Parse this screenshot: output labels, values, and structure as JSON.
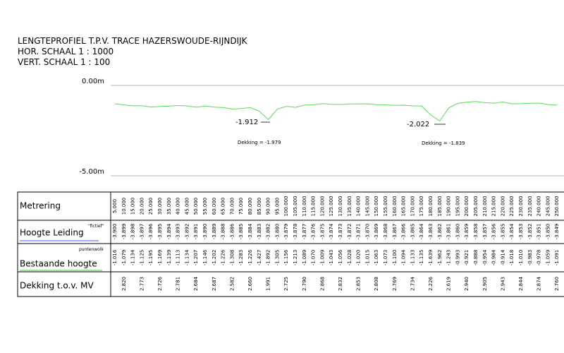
{
  "header": {
    "title": "LENGTEPROFIEL T.P.V. TRACE HAZERSWOUDE-RIJNDIJK",
    "lines": [
      "HOR. SCHAAL 1 : 1000",
      "VERT. SCHAAL 1 : 100"
    ]
  },
  "profile": {
    "yticks": [
      {
        "value": 0,
        "label": "0.00m"
      },
      {
        "value": -5,
        "label": "-5.00m"
      }
    ],
    "low_points": [
      "-1.912",
      "-2.022"
    ],
    "dekking_notes": [
      "Dekking = -1.979",
      "Dekking = -1.839"
    ]
  },
  "table": {
    "metrering": {
      "label": "Metrering",
      "values": [
        "5.000",
        "10.000",
        "15.000",
        "20.000",
        "25.000",
        "30.000",
        "35.000",
        "40.000",
        "45.000",
        "50.000",
        "55.000",
        "60.000",
        "65.000",
        "70.000",
        "75.000",
        "80.000",
        "85.000",
        "90.000",
        "95.000",
        "100.000",
        "105.000",
        "110.000",
        "115.000",
        "120.000",
        "125.000",
        "130.000",
        "135.000",
        "140.000",
        "145.000",
        "150.000",
        "155.000",
        "160.000",
        "165.000",
        "170.000",
        "175.000",
        "180.000",
        "185.000",
        "190.000",
        "195.000",
        "200.000",
        "205.000",
        "210.000",
        "215.000",
        "220.000",
        "225.000",
        "230.000",
        "235.000",
        "240.000",
        "245.000",
        "250.000"
      ]
    },
    "hoogte_leiding": {
      "label": "Hoogte Leiding",
      "note": "\"fictief\"",
      "values": [
        "-3.900",
        "-3.899",
        "-3.898",
        "-3.897",
        "-3.896",
        "-3.895",
        "-3.894",
        "-3.893",
        "-3.892",
        "-3.891",
        "-3.890",
        "-3.889",
        "-3.888",
        "-3.886",
        "-3.885",
        "-3.884",
        "-3.883",
        "-3.882",
        "-3.880",
        "-3.879",
        "-3.878",
        "-3.877",
        "-3.876",
        "-3.875",
        "-3.874",
        "-3.873",
        "-3.872",
        "-3.871",
        "-3.870",
        "-3.869",
        "-3.868",
        "-3.867",
        "-3.866",
        "-3.865",
        "-3.864",
        "-3.863",
        "-3.862",
        "-3.861",
        "-3.860",
        "-3.859",
        "-3.858",
        "-3.857",
        "-3.856",
        "-3.855",
        "-3.854",
        "-3.853",
        "-3.852",
        "-3.851",
        "-3.850",
        "-3.849"
      ]
    },
    "bestaande_hoogte": {
      "label": "Bestaande hoogte",
      "note": "puntenwolk",
      "values": [
        "-1.016",
        "-1.079",
        "-1.134",
        "-1.125",
        "-1.195",
        "-1.169",
        "-1.139",
        "-1.113",
        "-1.134",
        "-1.207",
        "-1.146",
        "-1.202",
        "-1.226",
        "-1.308",
        "-1.283",
        "-1.226",
        "-1.427",
        "-1.892",
        "-1.305",
        "-1.156",
        "-1.213",
        "-1.089",
        "-1.070",
        "-1.009",
        "-1.043",
        "-1.056",
        "-1.028",
        "-1.020",
        "-1.015",
        "-1.063",
        "-1.073",
        "-1.100",
        "-1.094",
        "-1.133",
        "-1.135",
        "-1.639",
        "-1.962",
        "-1.243",
        "-0.993",
        "-0.921",
        "-0.888",
        "-0.954",
        "-0.984",
        "-0.914",
        "-1.018",
        "-1.010",
        "-0.983",
        "-0.978",
        "-1.059",
        "-1.091"
      ]
    },
    "dekking": {
      "label": "Dekking t.o.v. MV",
      "values": [
        "2.820",
        "2.773",
        "2.726",
        "2.781",
        "2.684",
        "2.687",
        "2.582",
        "2.660",
        "1.991",
        "2.725",
        "2.790",
        "2.868",
        "2.832",
        "2.853",
        "2.808",
        "2.769",
        "2.734",
        "2.226",
        "2.619",
        "2.940",
        "2.905",
        "2.943",
        "2.844",
        "2.874",
        "2.760"
      ]
    }
  }
}
